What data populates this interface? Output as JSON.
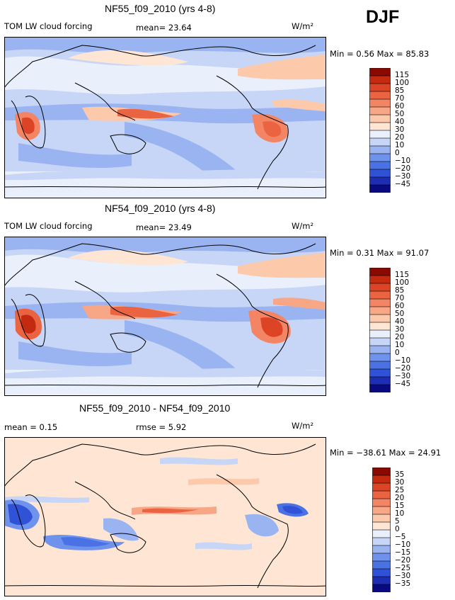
{
  "season": "DJF",
  "colors": {
    "abs_scale": [
      "#0a0a80",
      "#1e2eb4",
      "#2f52d6",
      "#4a72e4",
      "#6f92ec",
      "#9ab4f2",
      "#c7d6f7",
      "#e9f0fb",
      "#ffe6d4",
      "#fcc9ab",
      "#f8a786",
      "#f38565",
      "#ea6442",
      "#dd4425",
      "#c42a10",
      "#8a0a02"
    ],
    "diff_scale": [
      "#0a0a80",
      "#1e2eb4",
      "#2f52d6",
      "#4a72e4",
      "#6f92ec",
      "#9ab4f2",
      "#c7d6f7",
      "#e9f0fb",
      "#ffe6d4",
      "#fcc9ab",
      "#f8a786",
      "#f38565",
      "#ea6442",
      "#dd4425",
      "#c42a10",
      "#8a0a02"
    ]
  },
  "chart_data": [
    {
      "type": "heatmap",
      "title": "NF55_f09_2010 (yrs 4-8)",
      "field_label": "TOM LW cloud forcing",
      "mean_text": "mean=  23.64",
      "units": "W/m²",
      "minmax_text": "Min =   0.56 Max =  85.83",
      "colorbar_levels": [
        "115",
        "100",
        "85",
        "70",
        "60",
        "50",
        "40",
        "30",
        "20",
        "10",
        "0",
        "−10",
        "−20",
        "−30",
        "−45"
      ]
    },
    {
      "type": "heatmap",
      "title": "NF54_f09_2010 (yrs 4-8)",
      "field_label": "TOM LW cloud forcing",
      "mean_text": "mean=  23.49",
      "units": "W/m²",
      "minmax_text": "Min =   0.31 Max =  91.07",
      "colorbar_levels": [
        "115",
        "100",
        "85",
        "70",
        "60",
        "50",
        "40",
        "30",
        "20",
        "10",
        "0",
        "−10",
        "−20",
        "−30",
        "−45"
      ]
    },
    {
      "type": "heatmap",
      "title": "NF55_f09_2010 - NF54_f09_2010",
      "mean_text": "mean =   0.15",
      "rmse_text": "rmse =   5.92",
      "units": "W/m²",
      "minmax_text": "Min = −38.61 Max =  24.91",
      "colorbar_levels": [
        "35",
        "30",
        "25",
        "20",
        "15",
        "10",
        "5",
        "0",
        "−5",
        "−10",
        "−15",
        "−20",
        "−25",
        "−30",
        "−35"
      ]
    }
  ]
}
